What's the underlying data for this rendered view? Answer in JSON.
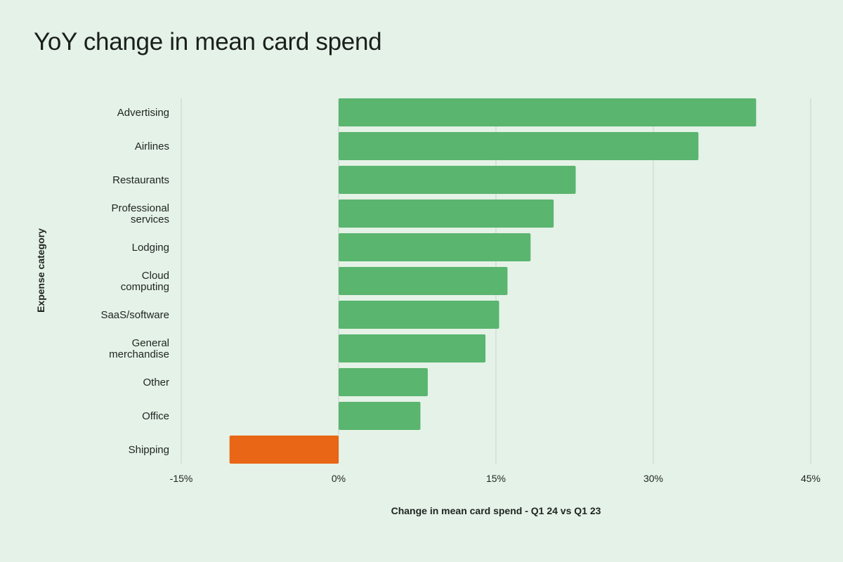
{
  "chart_data": {
    "type": "bar",
    "orientation": "horizontal",
    "title": "YoY change in mean card spend",
    "xlabel": "Change in mean card spend - Q1 24 vs Q1 23",
    "ylabel": "Expense category",
    "categories": [
      [
        "Advertising"
      ],
      [
        "Airlines"
      ],
      [
        "Restaurants"
      ],
      [
        "Professional",
        "services"
      ],
      [
        "Lodging"
      ],
      [
        "Cloud",
        "computing"
      ],
      [
        "SaaS/software"
      ],
      [
        "General",
        "merchandise"
      ],
      [
        "Other"
      ],
      [
        "Office"
      ],
      [
        "Shipping"
      ]
    ],
    "values": [
      39.8,
      34.3,
      22.6,
      20.5,
      18.3,
      16.1,
      15.3,
      14.0,
      8.5,
      7.8,
      -10.4
    ],
    "xlim": [
      -15,
      45
    ],
    "xticks": [
      -15,
      0,
      15,
      30,
      45
    ],
    "xtick_labels": [
      "-15%",
      "0%",
      "15%",
      "30%",
      "45%"
    ],
    "grid": true,
    "unit": "%"
  },
  "colors": {
    "positive": "#5ab56f",
    "negative": "#e86615",
    "grid": "#d3ddd6",
    "text": "#1f2421",
    "background": "#e5f2e7"
  }
}
